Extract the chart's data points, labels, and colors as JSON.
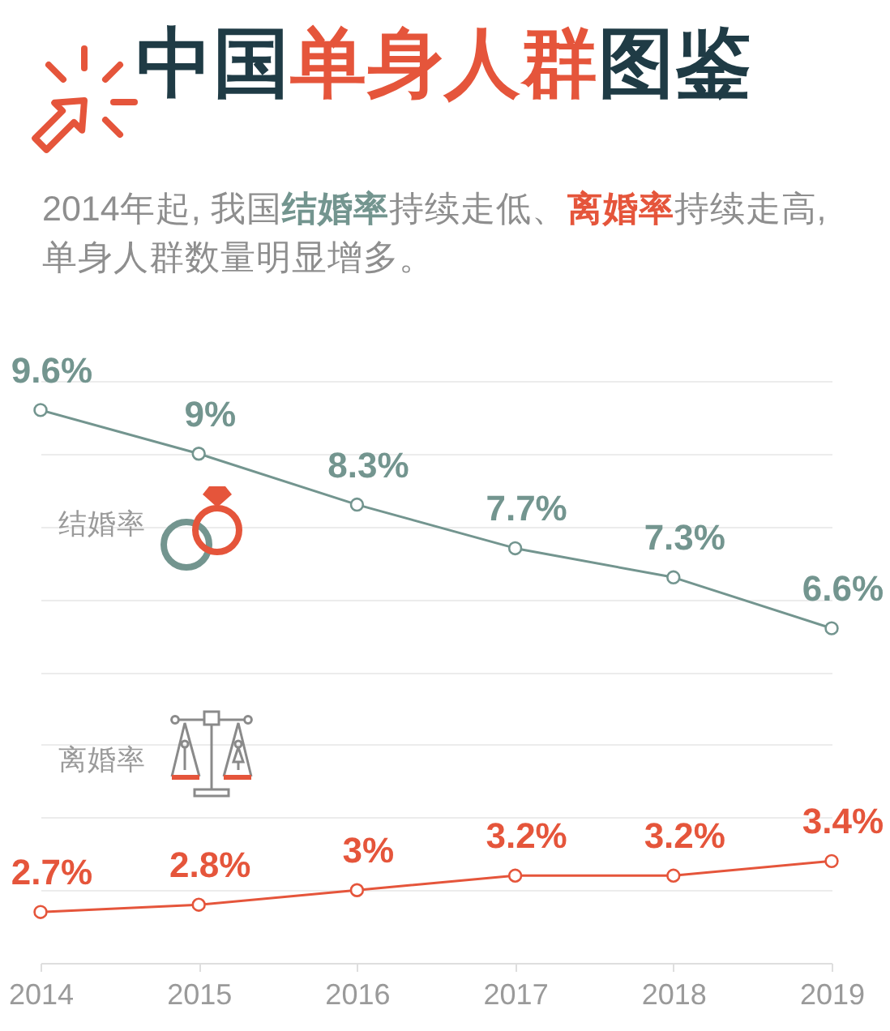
{
  "chart_data": {
    "type": "line",
    "title": "中国单身人群图鉴",
    "subtitle": "2014年起, 我国结婚率持续走低、离婚率持续走高, 单身人群数量明显增多。",
    "categories": [
      "2014",
      "2015",
      "2016",
      "2017",
      "2018",
      "2019"
    ],
    "series": [
      {
        "name": "结婚率",
        "color": "#73958f",
        "values": [
          9.6,
          9,
          8.3,
          7.7,
          7.3,
          6.6
        ],
        "value_labels": [
          "9.6%",
          "9%",
          "8.3%",
          "7.7%",
          "7.3%",
          "6.6%"
        ]
      },
      {
        "name": "离婚率",
        "color": "#e5553b",
        "values": [
          2.7,
          2.8,
          3,
          3.2,
          3.2,
          3.4
        ],
        "value_labels": [
          "2.7%",
          "2.8%",
          "3%",
          "3.2%",
          "3.2%",
          "3.4%"
        ]
      }
    ],
    "ylim": [
      2,
      10
    ],
    "yticks": [
      {
        "value": 2,
        "label": null
      },
      {
        "value": 3,
        "label": null
      },
      {
        "value": 4,
        "label": null
      },
      {
        "value": 5,
        "label": null
      },
      {
        "value": 6,
        "label": null
      },
      {
        "value": 7,
        "label": null
      },
      {
        "value": 8,
        "label": null
      },
      {
        "value": 9,
        "label": null
      },
      {
        "value": 10,
        "label": null
      }
    ],
    "grid": "y",
    "tick_labels": "x",
    "marker": "circle",
    "line_style": "solid",
    "legend": "left"
  }
}
